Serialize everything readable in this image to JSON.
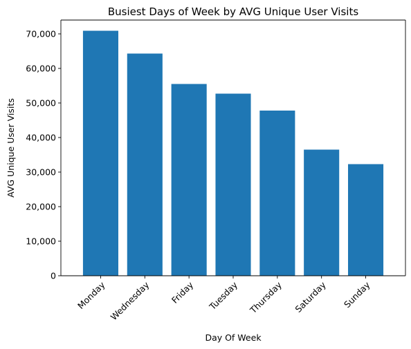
{
  "chart_data": {
    "type": "bar",
    "title": "Busiest Days of Week by AVG Unique User Visits",
    "xlabel": "Day Of Week",
    "ylabel": "AVG Unique User Visits",
    "categories": [
      "Monday",
      "Wednesday",
      "Friday",
      "Tuesday",
      "Thursday",
      "Saturday",
      "Sunday"
    ],
    "values": [
      70900,
      64300,
      55500,
      52700,
      47800,
      36500,
      32300
    ],
    "ylim": [
      0,
      74000
    ],
    "yticks": [
      0,
      10000,
      20000,
      30000,
      40000,
      50000,
      60000,
      70000
    ],
    "ytick_labels": [
      "0",
      "10,000",
      "20,000",
      "30,000",
      "40,000",
      "50,000",
      "60,000",
      "70,000"
    ],
    "bar_color": "#1f77b4",
    "grid": false,
    "legend": "none"
  }
}
